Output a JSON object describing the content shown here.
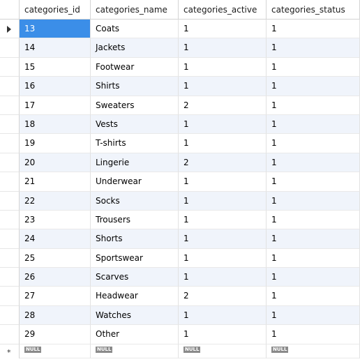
{
  "grid": {
    "columns": [
      "categories_id",
      "categories_name",
      "categories_active",
      "categories_status"
    ],
    "rows": [
      {
        "id": "13",
        "name": "Coats",
        "active": "1",
        "status": "1"
      },
      {
        "id": "14",
        "name": "Jackets",
        "active": "1",
        "status": "1"
      },
      {
        "id": "15",
        "name": "Footwear",
        "active": "1",
        "status": "1"
      },
      {
        "id": "16",
        "name": "Shirts",
        "active": "1",
        "status": "1"
      },
      {
        "id": "17",
        "name": "Sweaters",
        "active": "2",
        "status": "1"
      },
      {
        "id": "18",
        "name": "Vests",
        "active": "1",
        "status": "1"
      },
      {
        "id": "19",
        "name": "T-shirts",
        "active": "1",
        "status": "1"
      },
      {
        "id": "20",
        "name": "Lingerie",
        "active": "2",
        "status": "1"
      },
      {
        "id": "21",
        "name": "Underwear",
        "active": "1",
        "status": "1"
      },
      {
        "id": "22",
        "name": "Socks",
        "active": "1",
        "status": "1"
      },
      {
        "id": "23",
        "name": "Trousers",
        "active": "1",
        "status": "1"
      },
      {
        "id": "24",
        "name": "Shorts",
        "active": "1",
        "status": "1"
      },
      {
        "id": "25",
        "name": "Sportswear",
        "active": "1",
        "status": "1"
      },
      {
        "id": "26",
        "name": "Scarves",
        "active": "1",
        "status": "1"
      },
      {
        "id": "27",
        "name": "Headwear",
        "active": "2",
        "status": "1"
      },
      {
        "id": "28",
        "name": "Watches",
        "active": "1",
        "status": "1"
      },
      {
        "id": "29",
        "name": "Other",
        "active": "1",
        "status": "1"
      }
    ],
    "new_row": {
      "null_label": "NULL",
      "marker": "*"
    },
    "current_row_icon": "current-row-arrow-icon",
    "selection_color": "#3b8ee8"
  }
}
